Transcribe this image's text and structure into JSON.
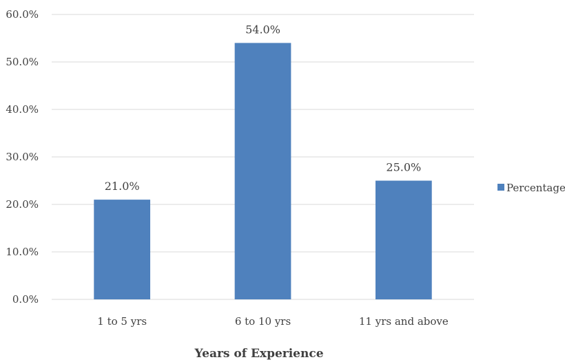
{
  "chart_data": {
    "type": "bar",
    "title": "",
    "xlabel": "Years of Experience",
    "ylabel": "",
    "categories": [
      "1 to 5 yrs",
      "6 to 10 yrs",
      "11 yrs and above"
    ],
    "series": [
      {
        "name": "Percentage",
        "values": [
          21.0,
          54.0,
          25.0
        ],
        "color": "#4f81bd"
      }
    ],
    "data_labels": [
      "21.0%",
      "54.0%",
      "25.0%"
    ],
    "ylim": [
      0,
      60
    ],
    "y_ticks": [
      "0.0%",
      "10.0%",
      "20.0%",
      "30.0%",
      "40.0%",
      "50.0%",
      "60.0%"
    ],
    "grid": true,
    "legend_position": "right"
  }
}
